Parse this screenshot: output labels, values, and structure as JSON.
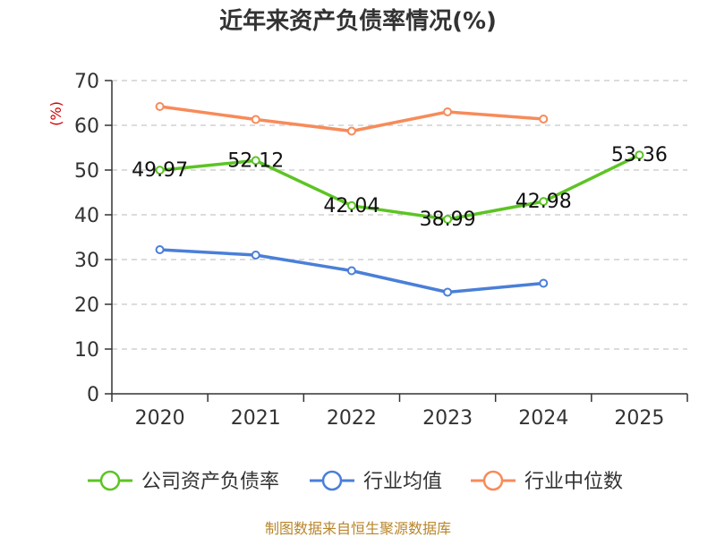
{
  "chart_data": {
    "type": "line",
    "title": "近年来资产负债率情况(%)",
    "ylabel": "(%)",
    "categories": [
      "2020",
      "2021",
      "2022",
      "2023",
      "2024",
      "2025"
    ],
    "ylim": [
      0,
      70
    ],
    "yticks": [
      0,
      10,
      20,
      30,
      40,
      50,
      60,
      70
    ],
    "grid": true,
    "legend_position": "bottom",
    "series": [
      {
        "name": "公司资产负债率",
        "color": "#5cc424",
        "values": [
          49.97,
          52.12,
          42.04,
          38.99,
          42.98,
          53.36
        ],
        "labels": [
          "49.97",
          "52.12",
          "42.04",
          "38.99",
          "42.98",
          "53.36"
        ]
      },
      {
        "name": "行业均值",
        "color": "#4a7fd8",
        "values": [
          32.2,
          31.0,
          27.5,
          22.7,
          24.7,
          null
        ]
      },
      {
        "name": "行业中位数",
        "color": "#f78b5a",
        "values": [
          64.2,
          61.3,
          58.7,
          63.0,
          61.4,
          null
        ]
      }
    ]
  },
  "source": "制图数据来自恒生聚源数据库"
}
